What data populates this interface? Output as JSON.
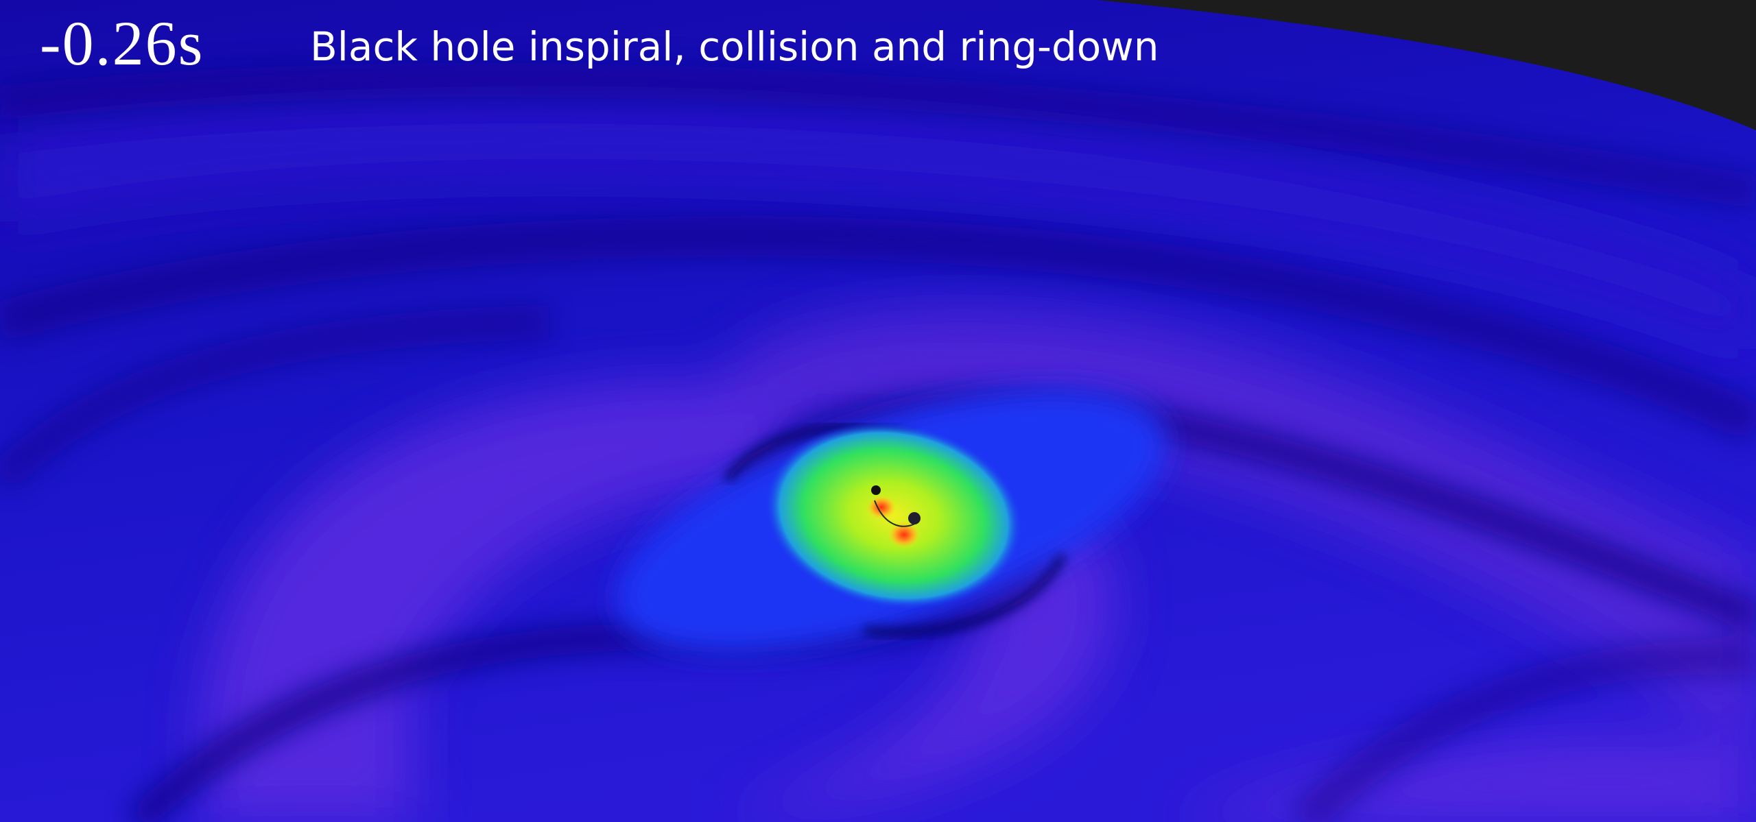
{
  "timestamp": "-0.26s",
  "title": "Black hole inspiral, collision and ring-down"
}
